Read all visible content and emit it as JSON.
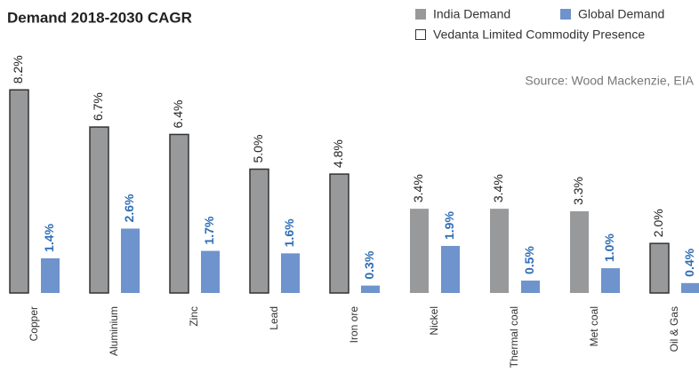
{
  "chart_data": {
    "type": "bar",
    "title": "Demand 2018-2030 CAGR",
    "source": "Source: Wood Mackenzie, EIA",
    "categories": [
      "Copper",
      "Aluminium",
      "Zinc",
      "Lead",
      "Iron ore",
      "Nickel",
      "Thermal coal",
      "Met coal",
      "Oil & Gas"
    ],
    "series": [
      {
        "name": "India Demand",
        "color": "#98999b",
        "values": [
          8.2,
          6.7,
          6.4,
          5.0,
          4.8,
          3.4,
          3.4,
          3.3,
          2.0
        ],
        "value_labels": [
          "8.2%",
          "6.7%",
          "6.4%",
          "5.0%",
          "4.8%",
          "3.4%",
          "3.4%",
          "3.3%",
          "2.0%"
        ]
      },
      {
        "name": "Global Demand",
        "color": "#6f93cc",
        "values": [
          1.4,
          2.6,
          1.7,
          1.6,
          0.3,
          1.9,
          0.5,
          1.0,
          0.4
        ],
        "value_labels": [
          "1.4%",
          "2.6%",
          "1.7%",
          "1.6%",
          "0.3%",
          "1.9%",
          "0.5%",
          "1.0%",
          "0.4%"
        ]
      }
    ],
    "presence_legend": {
      "name": "Vedanta Limited Commodity Presence",
      "color": "#ffffff"
    },
    "presence": [
      true,
      true,
      true,
      true,
      true,
      false,
      false,
      false,
      true
    ]
  }
}
